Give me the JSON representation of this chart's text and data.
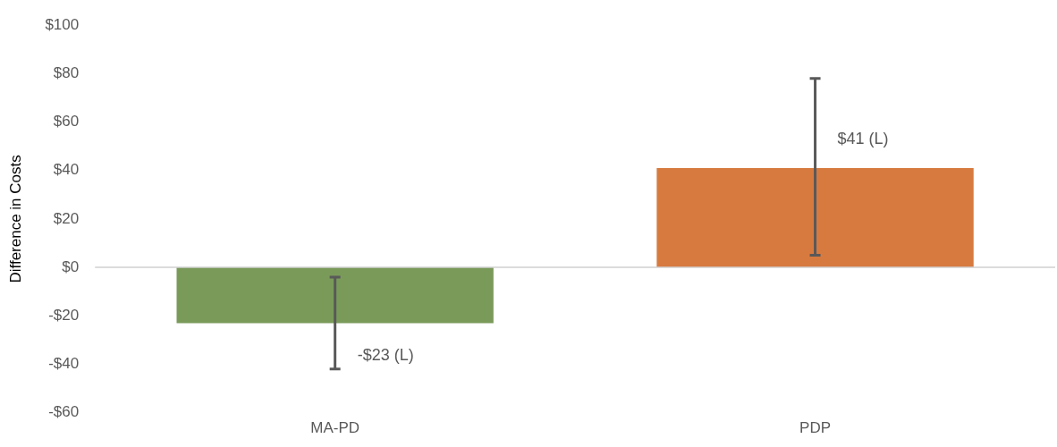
{
  "chart_data": {
    "type": "bar",
    "ylabel": "Difference in Costs",
    "categories": [
      "MA-PD",
      "PDP"
    ],
    "values": [
      -23,
      41
    ],
    "colors": [
      "#7a9a5a",
      "#d77a3f"
    ],
    "errors": [
      [
        -42,
        -4
      ],
      [
        5,
        78
      ]
    ],
    "value_labels": [
      "-$23 (L)",
      "$41 (L)"
    ],
    "ylim": [
      -60,
      100
    ],
    "yticks": [
      {
        "value": -60,
        "label": "-$60"
      },
      {
        "value": -40,
        "label": "-$40"
      },
      {
        "value": -20,
        "label": "-$20"
      },
      {
        "value": 0,
        "label": "$0"
      },
      {
        "value": 20,
        "label": "$20"
      },
      {
        "value": 40,
        "label": "$40"
      },
      {
        "value": 60,
        "label": "$60"
      },
      {
        "value": 80,
        "label": "$80"
      },
      {
        "value": 100,
        "label": "$100"
      }
    ],
    "ref_lines": [
      {
        "axis": "y",
        "value": 0,
        "color": "#d0d0d0"
      }
    ],
    "grid": false,
    "legend": false
  }
}
